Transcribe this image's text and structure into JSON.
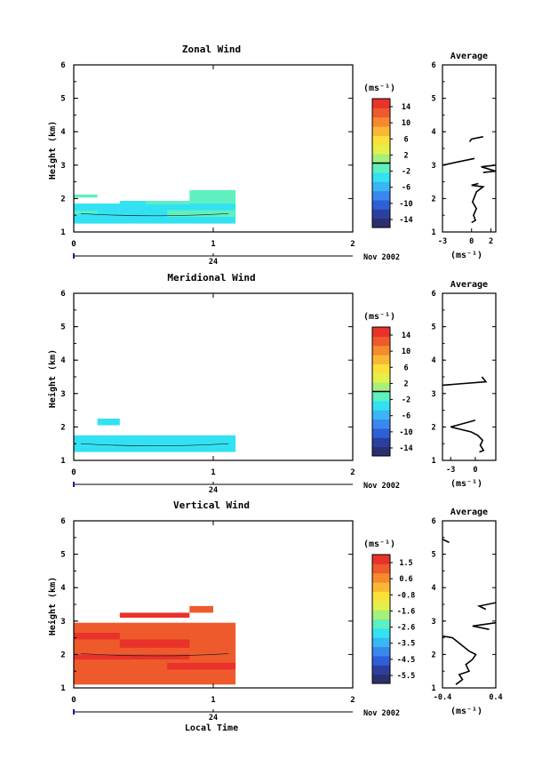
{
  "chart_data": [
    {
      "type": "heatmap",
      "title": "Zonal Wind",
      "ylabel": "Height (km)",
      "xlabel": "",
      "xlim": [
        0,
        2
      ],
      "ylim": [
        1,
        6
      ],
      "xticks": [
        "0",
        "1",
        "2"
      ],
      "yticks": [
        "1",
        "2",
        "3",
        "4",
        "5",
        "6"
      ],
      "date_axis": {
        "day": "24",
        "month_year": "Nov 2002"
      },
      "colorbar": {
        "unit": "(ms⁻¹)",
        "ticks": [
          "14",
          "10",
          "6",
          "2",
          "-2",
          "-6",
          "-10",
          "-14"
        ],
        "min": -16,
        "max": 16,
        "zero_line": 0
      },
      "cells": [
        {
          "x0": 0.0,
          "x1": 1.16,
          "y0": 1.25,
          "y1": 1.85,
          "value": -3.2
        },
        {
          "x0": 0.0,
          "x1": 0.17,
          "y0": 2.03,
          "y1": 2.12,
          "value": -1.5
        },
        {
          "x0": 0.33,
          "x1": 0.52,
          "y0": 1.83,
          "y1": 1.93,
          "value": -3.2
        },
        {
          "x0": 0.52,
          "x1": 0.83,
          "y0": 1.83,
          "y1": 1.93,
          "value": -1.5
        },
        {
          "x0": 0.83,
          "x1": 1.16,
          "y0": 1.85,
          "y1": 2.25,
          "value": -1.5
        },
        {
          "x0": 0.0,
          "x1": 0.17,
          "y0": 1.55,
          "y1": 1.63,
          "value": -1.5
        },
        {
          "x0": 0.67,
          "x1": 1.16,
          "y0": 1.45,
          "y1": 1.65,
          "value": -1.5
        }
      ],
      "profile": {
        "title": "Average",
        "xlabel": "(ms⁻¹)",
        "xlim": [
          -3,
          2.5
        ],
        "xticks": [
          "-3",
          "0",
          "2"
        ],
        "ylim": [
          1,
          6
        ],
        "yticks": [
          "1",
          "2",
          "3",
          "4",
          "5",
          "6"
        ],
        "segments": [
          [
            [
              0.0,
              1.28
            ],
            [
              0.4,
              1.35
            ],
            [
              0.2,
              1.5
            ],
            [
              0.5,
              1.7
            ],
            [
              0.1,
              1.9
            ],
            [
              0.5,
              2.2
            ],
            [
              1.2,
              2.35
            ],
            [
              0.0,
              2.4
            ],
            [
              0.7,
              2.45
            ]
          ],
          [
            [
              1.2,
              2.78
            ],
            [
              2.5,
              2.82
            ],
            [
              1.0,
              2.95
            ],
            [
              2.5,
              3.0
            ]
          ],
          [
            [
              -3.0,
              3.0
            ],
            [
              0.3,
              3.2
            ]
          ],
          [
            [
              -0.2,
              3.7
            ],
            [
              0.0,
              3.78
            ],
            [
              1.2,
              3.85
            ]
          ]
        ]
      }
    },
    {
      "type": "heatmap",
      "title": "Meridional Wind",
      "ylabel": "Height (km)",
      "xlabel": "",
      "xlim": [
        0,
        2
      ],
      "ylim": [
        1,
        6
      ],
      "xticks": [
        "0",
        "1",
        "2"
      ],
      "yticks": [
        "1",
        "2",
        "3",
        "4",
        "5",
        "6"
      ],
      "date_axis": {
        "day": "24",
        "month_year": "Nov 2002"
      },
      "colorbar": {
        "unit": "(ms⁻¹)",
        "ticks": [
          "14",
          "10",
          "6",
          "2",
          "-2",
          "-6",
          "-10",
          "-14"
        ],
        "min": -16,
        "max": 16,
        "zero_line": 0
      },
      "cells": [
        {
          "x0": 0.0,
          "x1": 1.16,
          "y0": 1.25,
          "y1": 1.75,
          "value": -2.5
        },
        {
          "x0": 0.0,
          "x1": 1.16,
          "y0": 1.42,
          "y1": 1.55,
          "value": -3.5
        },
        {
          "x0": 0.17,
          "x1": 0.33,
          "y0": 2.05,
          "y1": 2.25,
          "value": -4.5
        }
      ],
      "profile": {
        "title": "Average",
        "xlabel": "(ms⁻¹)",
        "xlim": [
          -4,
          2.5
        ],
        "xticks": [
          "-3",
          "0"
        ],
        "ylim": [
          1,
          6
        ],
        "yticks": [
          "1",
          "2",
          "3",
          "4",
          "5",
          "6"
        ],
        "segments": [
          [
            [
              0.5,
              1.25
            ],
            [
              1.0,
              1.3
            ],
            [
              0.6,
              1.45
            ],
            [
              0.9,
              1.6
            ],
            [
              0.3,
              1.75
            ],
            [
              -0.5,
              1.85
            ],
            [
              -3.0,
              2.0
            ],
            [
              0.0,
              2.2
            ]
          ],
          [
            [
              -4.0,
              3.25
            ],
            [
              1.3,
              3.35
            ],
            [
              0.8,
              3.5
            ]
          ]
        ]
      }
    },
    {
      "type": "heatmap",
      "title": "Vertical Wind",
      "ylabel": "Height (km)",
      "xlabel": "Local Time",
      "xlim": [
        0,
        2
      ],
      "ylim": [
        1,
        6
      ],
      "xticks": [
        "0",
        "1",
        "2"
      ],
      "yticks": [
        "1",
        "2",
        "3",
        "4",
        "5",
        "6"
      ],
      "date_axis": {
        "day": "24",
        "month_year": "Nov 2002"
      },
      "colorbar": {
        "unit": "(ms⁻¹)",
        "ticks": [
          "1.5",
          "0.6",
          "-0.8",
          "-1.6",
          "-2.6",
          "-3.5",
          "-4.5",
          "-5.5"
        ],
        "min": -6,
        "max": 2,
        "zero_line": null
      },
      "cells": [
        {
          "x0": 0.0,
          "x1": 1.16,
          "y0": 1.1,
          "y1": 2.95,
          "value": 1.1
        },
        {
          "x0": 0.0,
          "x1": 0.33,
          "y0": 2.45,
          "y1": 2.65,
          "value": 1.5
        },
        {
          "x0": 0.33,
          "x1": 0.83,
          "y0": 2.2,
          "y1": 2.45,
          "value": 1.5
        },
        {
          "x0": 0.67,
          "x1": 1.16,
          "y0": 1.55,
          "y1": 1.75,
          "value": 1.5
        },
        {
          "x0": 0.33,
          "x1": 0.83,
          "y0": 3.1,
          "y1": 3.25,
          "value": 1.5
        },
        {
          "x0": 0.83,
          "x1": 1.0,
          "y0": 3.25,
          "y1": 3.45,
          "value": 1.2
        },
        {
          "x0": 0.0,
          "x1": 0.83,
          "y0": 1.85,
          "y1": 2.0,
          "value": 1.5
        }
      ],
      "profile": {
        "title": "Average",
        "xlabel": "(ms⁻¹)",
        "xlim": [
          -0.4,
          0.4
        ],
        "xticks": [
          "-0.4",
          "0.4"
        ],
        "ylim": [
          1,
          6
        ],
        "yticks": [
          "1",
          "2",
          "3",
          "4",
          "5",
          "6"
        ],
        "segments": [
          [
            [
              -0.2,
              1.1
            ],
            [
              -0.1,
              1.25
            ],
            [
              -0.15,
              1.4
            ],
            [
              0.0,
              1.5
            ],
            [
              -0.05,
              1.7
            ],
            [
              0.05,
              1.85
            ],
            [
              0.1,
              2.0
            ],
            [
              0.0,
              2.1
            ],
            [
              -0.25,
              2.5
            ],
            [
              -0.4,
              2.55
            ]
          ],
          [
            [
              0.4,
              2.95
            ],
            [
              0.05,
              2.85
            ],
            [
              0.3,
              2.75
            ]
          ],
          [
            [
              0.4,
              3.55
            ],
            [
              0.15,
              3.45
            ],
            [
              0.25,
              3.35
            ]
          ],
          [
            [
              -0.4,
              5.45
            ],
            [
              -0.3,
              5.35
            ]
          ]
        ]
      }
    }
  ]
}
